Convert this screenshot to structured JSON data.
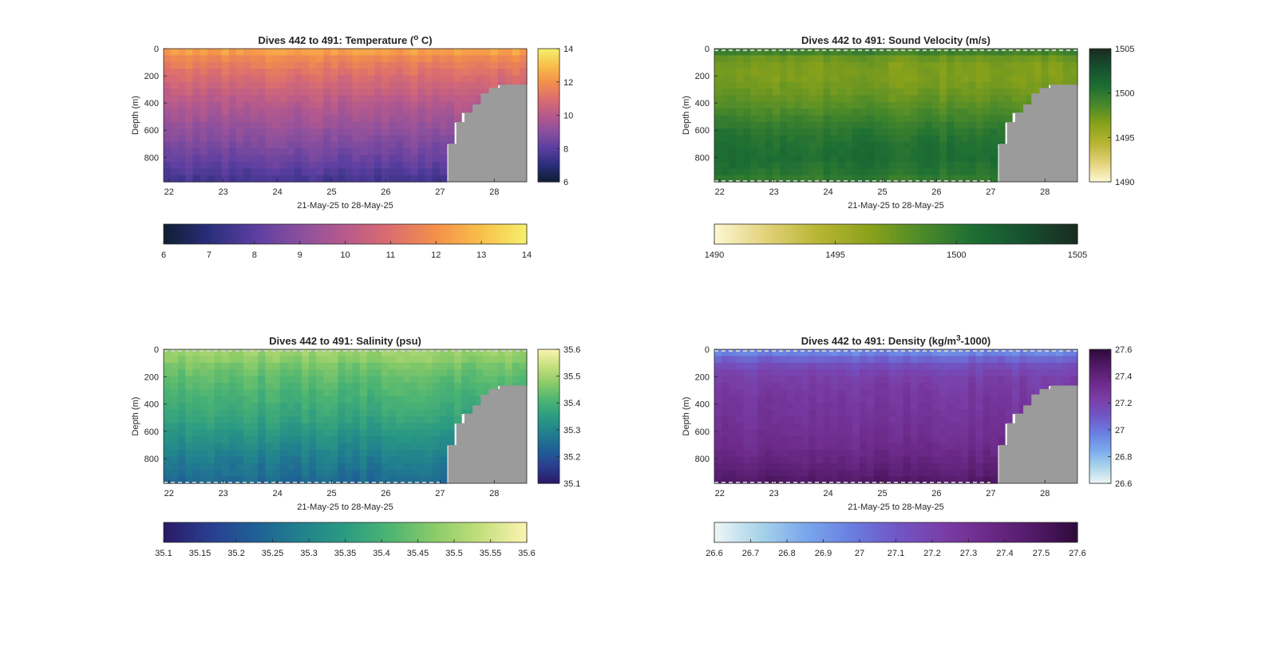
{
  "chart_data": [
    {
      "type": "heatmap",
      "title_prefix": "Dives 442 to 491: Temperature (",
      "title_sup": "o",
      "title_suffix": " C)",
      "xlabel": "21-May-25 to 28-May-25",
      "ylabel": "Depth (m)",
      "x_ticks": [
        "22",
        "23",
        "24",
        "25",
        "26",
        "27",
        "28"
      ],
      "y_ticks": [
        "0",
        "200",
        "400",
        "600",
        "800"
      ],
      "xlim": [
        21.9,
        28.6
      ],
      "ylim": [
        0,
        980
      ],
      "colorbar_ticks": [
        "6",
        "8",
        "10",
        "12",
        "14"
      ],
      "h_colorbar_ticks": [
        "6",
        "7",
        "8",
        "9",
        "10",
        "11",
        "12",
        "13",
        "14"
      ],
      "clim": [
        6,
        14
      ],
      "colormap": [
        "#0f1e33",
        "#2a2e7a",
        "#5a3ea0",
        "#8a4f9e",
        "#b75a8c",
        "#dc6e6e",
        "#f4904a",
        "#f8c04a",
        "#f5f06a"
      ],
      "profile": [
        [
          0,
          12.8
        ],
        [
          40,
          12.0
        ],
        [
          100,
          11.6
        ],
        [
          200,
          11.0
        ],
        [
          300,
          10.5
        ],
        [
          400,
          10.0
        ],
        [
          500,
          9.6
        ],
        [
          600,
          9.2
        ],
        [
          700,
          8.8
        ],
        [
          800,
          8.4
        ],
        [
          900,
          7.9
        ],
        [
          980,
          7.5
        ]
      ],
      "seafloor": [
        [
          27.0,
          980
        ],
        [
          27.15,
          700
        ],
        [
          27.3,
          540
        ],
        [
          27.45,
          470
        ],
        [
          27.6,
          410
        ],
        [
          27.75,
          330
        ],
        [
          27.9,
          290
        ],
        [
          28.1,
          265
        ],
        [
          28.6,
          265
        ]
      ],
      "dashed_edges": false
    },
    {
      "type": "heatmap",
      "title_prefix": "Dives 442 to 491: Sound Velocity (m/s)",
      "title_sup": "",
      "title_suffix": "",
      "xlabel": "21-May-25 to 28-May-25",
      "ylabel": "Depth (m)",
      "x_ticks": [
        "22",
        "23",
        "24",
        "25",
        "26",
        "27",
        "28"
      ],
      "y_ticks": [
        "0",
        "200",
        "400",
        "600",
        "800"
      ],
      "xlim": [
        21.9,
        28.6
      ],
      "ylim": [
        0,
        980
      ],
      "colorbar_ticks": [
        "1490",
        "1495",
        "1500",
        "1505"
      ],
      "h_colorbar_ticks": [
        "1490",
        "1495",
        "1500",
        "1505"
      ],
      "clim": [
        1490,
        1505
      ],
      "colormap": [
        "#fdf7d2",
        "#e2d27a",
        "#b8b534",
        "#8aa21a",
        "#4c8a2a",
        "#1d6e34",
        "#17502f",
        "#1a2a1f"
      ],
      "profile": [
        [
          0,
          1501
        ],
        [
          40,
          1498
        ],
        [
          100,
          1497
        ],
        [
          200,
          1496.8
        ],
        [
          300,
          1497.3
        ],
        [
          400,
          1498
        ],
        [
          500,
          1499
        ],
        [
          600,
          1500
        ],
        [
          700,
          1500.5
        ],
        [
          800,
          1500.8
        ],
        [
          900,
          1500.3
        ],
        [
          980,
          1499.5
        ]
      ],
      "seafloor": [
        [
          27.0,
          980
        ],
        [
          27.15,
          700
        ],
        [
          27.3,
          540
        ],
        [
          27.45,
          470
        ],
        [
          27.6,
          410
        ],
        [
          27.75,
          330
        ],
        [
          27.9,
          290
        ],
        [
          28.1,
          265
        ],
        [
          28.6,
          265
        ]
      ],
      "dashed_edges": true
    },
    {
      "type": "heatmap",
      "title_prefix": "Dives 442 to 491: Salinity (psu)",
      "title_sup": "",
      "title_suffix": "",
      "xlabel": "21-May-25 to 28-May-25",
      "ylabel": "Depth (m)",
      "x_ticks": [
        "22",
        "23",
        "24",
        "25",
        "26",
        "27",
        "28"
      ],
      "y_ticks": [
        "0",
        "200",
        "400",
        "600",
        "800"
      ],
      "xlim": [
        21.9,
        28.6
      ],
      "ylim": [
        0,
        980
      ],
      "colorbar_ticks": [
        "35.1",
        "35.2",
        "35.3",
        "35.4",
        "35.5",
        "35.6"
      ],
      "h_colorbar_ticks": [
        "35.1",
        "35.15",
        "35.2",
        "35.25",
        "35.3",
        "35.35",
        "35.4",
        "35.45",
        "35.5",
        "35.55",
        "35.6"
      ],
      "clim": [
        35.1,
        35.6
      ],
      "colormap": [
        "#2a1a66",
        "#2a3d8f",
        "#1f5f96",
        "#21808e",
        "#2c9b82",
        "#4eb572",
        "#8ccc68",
        "#c6df7e",
        "#fbf4b0"
      ],
      "profile": [
        [
          0,
          35.47
        ],
        [
          40,
          35.5
        ],
        [
          100,
          35.46
        ],
        [
          200,
          35.43
        ],
        [
          300,
          35.41
        ],
        [
          400,
          35.39
        ],
        [
          500,
          35.37
        ],
        [
          600,
          35.34
        ],
        [
          700,
          35.31
        ],
        [
          800,
          35.28
        ],
        [
          900,
          35.26
        ],
        [
          980,
          35.24
        ]
      ],
      "seafloor": [
        [
          27.0,
          980
        ],
        [
          27.15,
          700
        ],
        [
          27.3,
          540
        ],
        [
          27.45,
          470
        ],
        [
          27.6,
          410
        ],
        [
          27.75,
          330
        ],
        [
          27.9,
          290
        ],
        [
          28.1,
          265
        ],
        [
          28.6,
          265
        ]
      ],
      "dashed_edges": true
    },
    {
      "type": "heatmap",
      "title_prefix": "Dives 442 to 491: Density (kg/m",
      "title_sup": "3",
      "title_suffix": "-1000)",
      "xlabel": "21-May-25 to 28-May-25",
      "ylabel": "Depth (m)",
      "x_ticks": [
        "22",
        "23",
        "24",
        "25",
        "26",
        "27",
        "28"
      ],
      "y_ticks": [
        "0",
        "200",
        "400",
        "600",
        "800"
      ],
      "xlim": [
        21.9,
        28.6
      ],
      "ylim": [
        0,
        980
      ],
      "colorbar_ticks": [
        "26.6",
        "26.8",
        "27",
        "27.2",
        "27.4",
        "27.6"
      ],
      "h_colorbar_ticks": [
        "26.6",
        "26.7",
        "26.8",
        "26.9",
        "27",
        "27.1",
        "27.2",
        "27.3",
        "27.4",
        "27.5",
        "27.6"
      ],
      "clim": [
        26.6,
        27.6
      ],
      "colormap": [
        "#eef6f6",
        "#a9d4ea",
        "#7aa8ec",
        "#6a7fe0",
        "#7057c6",
        "#7a3fa8",
        "#6d2a8a",
        "#521a68",
        "#2f0b3a"
      ],
      "profile": [
        [
          0,
          26.92
        ],
        [
          40,
          26.98
        ],
        [
          100,
          27.12
        ],
        [
          200,
          27.22
        ],
        [
          300,
          27.25
        ],
        [
          400,
          27.27
        ],
        [
          500,
          27.29
        ],
        [
          600,
          27.31
        ],
        [
          700,
          27.34
        ],
        [
          800,
          27.38
        ],
        [
          900,
          27.43
        ],
        [
          980,
          27.48
        ]
      ],
      "seafloor": [
        [
          27.0,
          980
        ],
        [
          27.15,
          700
        ],
        [
          27.3,
          540
        ],
        [
          27.45,
          470
        ],
        [
          27.6,
          410
        ],
        [
          27.75,
          330
        ],
        [
          27.9,
          290
        ],
        [
          28.1,
          265
        ],
        [
          28.6,
          265
        ]
      ],
      "dashed_edges": true
    }
  ]
}
